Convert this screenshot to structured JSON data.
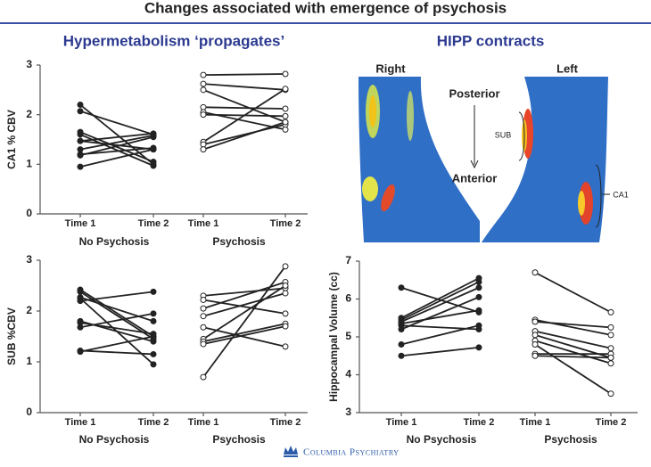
{
  "title": "Changes associated with emergence of psychosis",
  "left_heading": "Hypermetabolism ‘propagates’",
  "right_heading": "HIPP contracts",
  "image_panel": {
    "right": "Right",
    "left": "Left",
    "posterior": "Posterior",
    "anterior": "Anterior",
    "sub": "SUB",
    "ca1": "CA1"
  },
  "footer": "Columbia Psychiatry",
  "chart_data": [
    {
      "type": "slope",
      "ylabel": "CA1 % CBV",
      "ylim": [
        0,
        3
      ],
      "yticks": [
        0,
        1,
        2,
        3
      ],
      "groups": [
        {
          "label": "No Psychosis",
          "x_labels": [
            "Time 1",
            "Time 2"
          ],
          "filled": true,
          "lines": [
            [
              2.2,
              1.0
            ],
            [
              2.07,
              1.6
            ],
            [
              1.65,
              1.05
            ],
            [
              1.6,
              0.97
            ],
            [
              1.47,
              1.62
            ],
            [
              1.47,
              1.3
            ],
            [
              1.3,
              1.58
            ],
            [
              1.2,
              1.33
            ],
            [
              1.18,
              1.55
            ],
            [
              0.95,
              1.3
            ]
          ]
        },
        {
          "label": "Psychosis",
          "x_labels": [
            "Time 1",
            "Time 2"
          ],
          "filled": false,
          "lines": [
            [
              2.8,
              2.82
            ],
            [
              2.62,
              2.5
            ],
            [
              2.5,
              1.85
            ],
            [
              2.15,
              2.12
            ],
            [
              2.05,
              1.7
            ],
            [
              2.0,
              1.97
            ],
            [
              1.45,
              2.52
            ],
            [
              1.4,
              1.8
            ],
            [
              1.3,
              1.85
            ]
          ]
        }
      ]
    },
    {
      "type": "slope",
      "ylabel": "SUB %CBV",
      "ylim": [
        0,
        3
      ],
      "yticks": [
        0,
        1,
        2,
        3
      ],
      "groups": [
        {
          "label": "No Psychosis",
          "x_labels": [
            "Time 1",
            "Time 2"
          ],
          "filled": true,
          "lines": [
            [
              2.42,
              1.5
            ],
            [
              2.38,
              1.45
            ],
            [
              2.27,
              1.8
            ],
            [
              2.2,
              2.38
            ],
            [
              1.8,
              1.4
            ],
            [
              1.77,
              1.55
            ],
            [
              1.68,
              1.95
            ],
            [
              1.22,
              1.15
            ],
            [
              1.2,
              1.5
            ],
            [
              2.25,
              0.95
            ]
          ]
        },
        {
          "label": "Psychosis",
          "x_labels": [
            "Time 1",
            "Time 2"
          ],
          "filled": false,
          "lines": [
            [
              2.3,
              2.45
            ],
            [
              2.22,
              1.95
            ],
            [
              2.05,
              2.57
            ],
            [
              1.9,
              2.35
            ],
            [
              1.68,
              1.3
            ],
            [
              1.45,
              2.5
            ],
            [
              1.4,
              1.75
            ],
            [
              1.35,
              1.7
            ],
            [
              0.7,
              2.88
            ]
          ]
        }
      ]
    },
    {
      "type": "slope",
      "ylabel": "Hippocampal Volume (cc)",
      "ylim": [
        3,
        7
      ],
      "yticks": [
        3,
        4,
        5,
        6,
        7
      ],
      "groups": [
        {
          "label": "No Psychosis",
          "x_labels": [
            "Time 1",
            "Time 2"
          ],
          "filled": true,
          "lines": [
            [
              6.3,
              5.65
            ],
            [
              5.5,
              6.55
            ],
            [
              5.45,
              6.45
            ],
            [
              5.4,
              6.3
            ],
            [
              5.35,
              5.7
            ],
            [
              5.3,
              5.2
            ],
            [
              5.2,
              6.05
            ],
            [
              4.8,
              5.3
            ],
            [
              4.5,
              4.72
            ]
          ]
        },
        {
          "label": "Psychosis",
          "x_labels": [
            "Time 1",
            "Time 2"
          ],
          "filled": false,
          "lines": [
            [
              6.7,
              5.65
            ],
            [
              5.45,
              5.05
            ],
            [
              5.4,
              5.25
            ],
            [
              5.15,
              4.7
            ],
            [
              5.05,
              4.45
            ],
            [
              4.9,
              4.3
            ],
            [
              4.8,
              3.5
            ],
            [
              4.55,
              4.55
            ],
            [
              4.5,
              4.45
            ]
          ]
        }
      ]
    }
  ]
}
